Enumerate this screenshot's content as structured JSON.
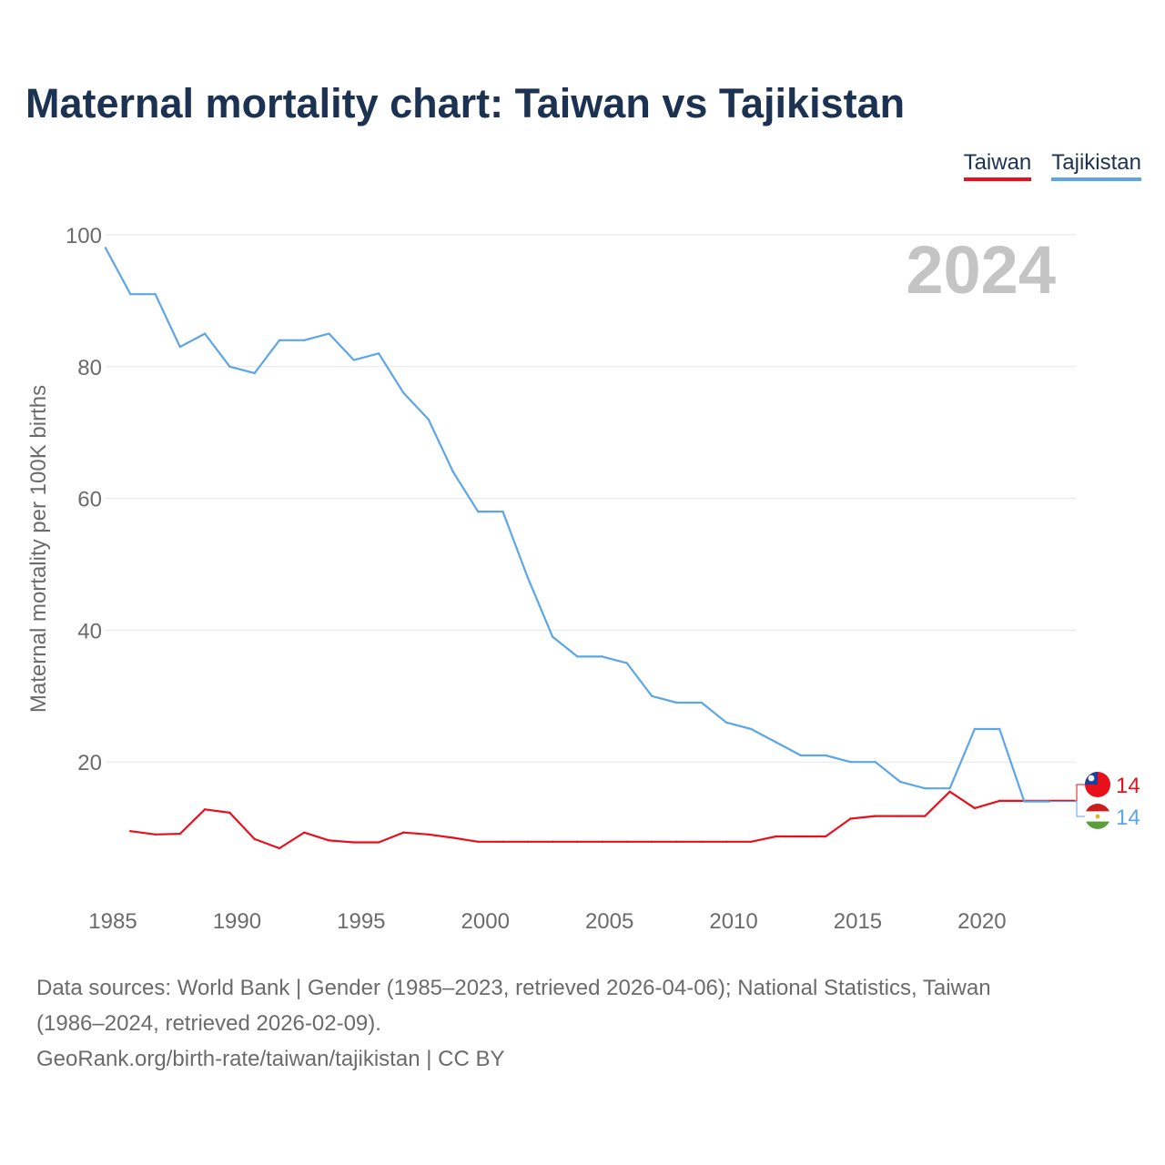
{
  "title": "Maternal mortality chart: Taiwan vs Tajikistan",
  "legend": {
    "taiwan": "Taiwan",
    "tajikistan": "Tajikistan"
  },
  "chart_data": {
    "type": "line",
    "title": "Maternal mortality chart: Taiwan vs Tajikistan",
    "xlabel": "",
    "ylabel": "Maternal mortality per 100K births",
    "year_label": "2024",
    "xlim": [
      1985,
      2024
    ],
    "ylim": [
      0,
      100
    ],
    "xticks": [
      1985,
      1990,
      1995,
      2000,
      2005,
      2010,
      2015,
      2020
    ],
    "yticks": [
      20,
      40,
      60,
      80,
      100
    ],
    "series": [
      {
        "name": "Taiwan",
        "color": "#e8111b",
        "end_label": "14",
        "x": [
          1986,
          1987,
          1988,
          1989,
          1990,
          1991,
          1992,
          1993,
          1994,
          1995,
          1996,
          1997,
          1998,
          1999,
          2000,
          2001,
          2002,
          2003,
          2004,
          2005,
          2006,
          2007,
          2008,
          2009,
          2010,
          2011,
          2012,
          2013,
          2014,
          2015,
          2016,
          2017,
          2018,
          2019,
          2020,
          2021,
          2022,
          2023,
          2024
        ],
        "values": [
          9.5,
          9.0,
          9.1,
          12.8,
          12.3,
          8.3,
          6.9,
          9.3,
          8.1,
          7.8,
          7.8,
          9.3,
          9.0,
          8.5,
          7.9,
          7.9,
          7.9,
          7.9,
          7.9,
          7.9,
          7.9,
          7.9,
          7.9,
          7.9,
          7.9,
          7.9,
          8.7,
          8.7,
          8.7,
          11.4,
          11.8,
          11.8,
          11.8,
          15.5,
          13.0,
          14.1,
          14.1,
          14.1,
          14.1
        ]
      },
      {
        "name": "Tajikistan",
        "color": "#5da6e6",
        "end_label": "14",
        "x": [
          1985,
          1986,
          1987,
          1988,
          1989,
          1990,
          1991,
          1992,
          1993,
          1994,
          1995,
          1996,
          1997,
          1998,
          1999,
          2000,
          2001,
          2002,
          2003,
          2004,
          2005,
          2006,
          2007,
          2008,
          2009,
          2010,
          2011,
          2012,
          2013,
          2014,
          2015,
          2016,
          2017,
          2018,
          2019,
          2020,
          2021,
          2022,
          2023
        ],
        "values": [
          98,
          91,
          91,
          83,
          85,
          80,
          79,
          84,
          84,
          85,
          81,
          82,
          76,
          72,
          64,
          58,
          58,
          48,
          39,
          36,
          36,
          35,
          30,
          29,
          29,
          26,
          25,
          23,
          21,
          21,
          20,
          20,
          17,
          16,
          16,
          25,
          25,
          14,
          14
        ]
      }
    ]
  },
  "footer": {
    "line1": "Data sources: World Bank | Gender (1985–2023, retrieved 2026-04-06); National Statistics, Taiwan",
    "line2": "(1986–2024, retrieved 2026-02-09).",
    "line3": "GeoRank.org/birth-rate/taiwan/tajikistan | CC BY"
  }
}
